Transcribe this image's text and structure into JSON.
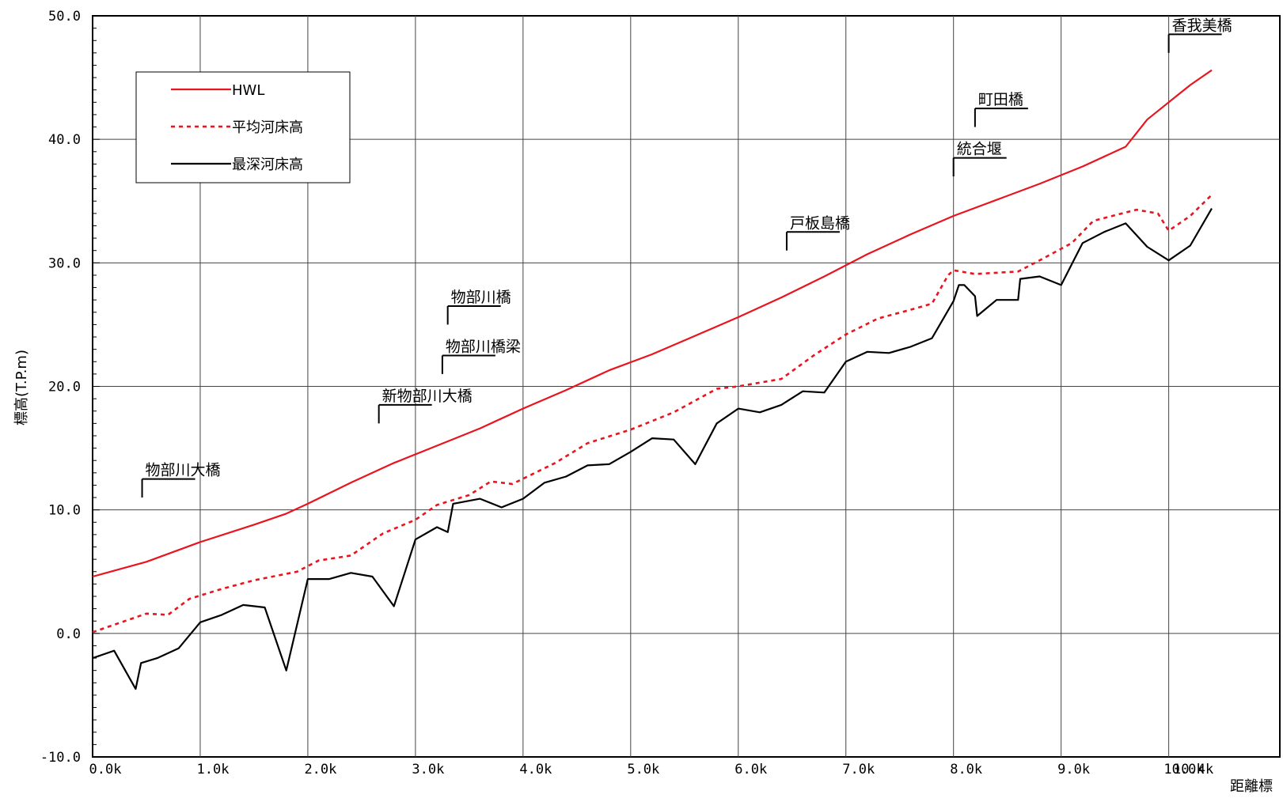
{
  "chart_data": {
    "type": "line",
    "title": "",
    "xlabel": "距離標",
    "ylabel": "標高(T.P.m)",
    "xlim": [
      0,
      10.4
    ],
    "ylim": [
      -10,
      50
    ],
    "grid": true,
    "legend_placement": "top-left",
    "y_ticks": [
      {
        "value": -10,
        "label": "-10.0"
      },
      {
        "value": 0,
        "label": "0.0"
      },
      {
        "value": 10,
        "label": "10.0"
      },
      {
        "value": 20,
        "label": "20.0"
      },
      {
        "value": 30,
        "label": "30.0"
      },
      {
        "value": 40,
        "label": "40.0"
      },
      {
        "value": 50,
        "label": "50.0"
      }
    ],
    "x_ticks": [
      {
        "value": 0,
        "label": "0.0k"
      },
      {
        "value": 1,
        "label": "1.0k"
      },
      {
        "value": 2,
        "label": "2.0k"
      },
      {
        "value": 3,
        "label": "3.0k"
      },
      {
        "value": 4,
        "label": "4.0k"
      },
      {
        "value": 5,
        "label": "5.0k"
      },
      {
        "value": 6,
        "label": "6.0k"
      },
      {
        "value": 7,
        "label": "7.0k"
      },
      {
        "value": 8,
        "label": "8.0k"
      },
      {
        "value": 9,
        "label": "9.0k"
      },
      {
        "value": 10,
        "label": "10.0k"
      },
      {
        "value": 10.4,
        "label": "10.4k"
      }
    ],
    "series": [
      {
        "name": "HWL",
        "color": "#e8141e",
        "style": "solid",
        "points": [
          [
            0,
            4.6
          ],
          [
            0.5,
            5.8
          ],
          [
            1.0,
            7.4
          ],
          [
            1.5,
            8.8
          ],
          [
            1.8,
            9.7
          ],
          [
            2.0,
            10.5
          ],
          [
            2.4,
            12.2
          ],
          [
            2.8,
            13.8
          ],
          [
            3.2,
            15.2
          ],
          [
            3.6,
            16.6
          ],
          [
            4.0,
            18.2
          ],
          [
            4.4,
            19.7
          ],
          [
            4.8,
            21.3
          ],
          [
            5.2,
            22.6
          ],
          [
            5.6,
            24.1
          ],
          [
            6.0,
            25.6
          ],
          [
            6.4,
            27.2
          ],
          [
            6.8,
            28.9
          ],
          [
            7.2,
            30.7
          ],
          [
            7.6,
            32.3
          ],
          [
            8.0,
            33.8
          ],
          [
            8.4,
            35.1
          ],
          [
            8.8,
            36.4
          ],
          [
            9.2,
            37.8
          ],
          [
            9.6,
            39.4
          ],
          [
            9.8,
            41.6
          ],
          [
            10.0,
            43.0
          ],
          [
            10.2,
            44.4
          ],
          [
            10.4,
            45.6
          ]
        ]
      },
      {
        "name": "平均河床高",
        "color": "#e8141e",
        "style": "dashed",
        "points": [
          [
            0,
            0.1
          ],
          [
            0.3,
            1.0
          ],
          [
            0.5,
            1.6
          ],
          [
            0.7,
            1.5
          ],
          [
            0.9,
            2.8
          ],
          [
            1.2,
            3.6
          ],
          [
            1.5,
            4.3
          ],
          [
            1.9,
            5.0
          ],
          [
            2.1,
            5.9
          ],
          [
            2.4,
            6.3
          ],
          [
            2.7,
            8.1
          ],
          [
            3.0,
            9.2
          ],
          [
            3.2,
            10.4
          ],
          [
            3.5,
            11.2
          ],
          [
            3.7,
            12.3
          ],
          [
            3.9,
            12.1
          ],
          [
            4.3,
            13.8
          ],
          [
            4.6,
            15.4
          ],
          [
            5.0,
            16.5
          ],
          [
            5.4,
            17.9
          ],
          [
            5.8,
            19.8
          ],
          [
            6.0,
            20.0
          ],
          [
            6.4,
            20.6
          ],
          [
            6.7,
            22.5
          ],
          [
            7.0,
            24.2
          ],
          [
            7.3,
            25.5
          ],
          [
            7.6,
            26.2
          ],
          [
            7.8,
            26.7
          ],
          [
            7.95,
            29.0
          ],
          [
            8.0,
            29.4
          ],
          [
            8.2,
            29.1
          ],
          [
            8.6,
            29.3
          ],
          [
            8.8,
            30.2
          ],
          [
            9.1,
            31.6
          ],
          [
            9.3,
            33.4
          ],
          [
            9.7,
            34.3
          ],
          [
            9.9,
            34.0
          ],
          [
            10.0,
            32.6
          ],
          [
            10.2,
            33.8
          ],
          [
            10.4,
            35.5
          ]
        ]
      },
      {
        "name": "最深河床高",
        "color": "#000000",
        "style": "solid",
        "points": [
          [
            0,
            -2.0
          ],
          [
            0.2,
            -1.4
          ],
          [
            0.4,
            -4.5
          ],
          [
            0.45,
            -2.4
          ],
          [
            0.6,
            -2.0
          ],
          [
            0.8,
            -1.2
          ],
          [
            1.0,
            0.9
          ],
          [
            1.2,
            1.5
          ],
          [
            1.4,
            2.3
          ],
          [
            1.6,
            2.1
          ],
          [
            1.8,
            -3.0
          ],
          [
            2.0,
            4.4
          ],
          [
            2.2,
            4.4
          ],
          [
            2.4,
            4.9
          ],
          [
            2.6,
            4.6
          ],
          [
            2.8,
            2.2
          ],
          [
            3.0,
            7.6
          ],
          [
            3.2,
            8.6
          ],
          [
            3.3,
            8.2
          ],
          [
            3.35,
            10.5
          ],
          [
            3.6,
            10.9
          ],
          [
            3.8,
            10.2
          ],
          [
            4.0,
            10.9
          ],
          [
            4.2,
            12.2
          ],
          [
            4.4,
            12.7
          ],
          [
            4.6,
            13.6
          ],
          [
            4.8,
            13.7
          ],
          [
            5.0,
            14.7
          ],
          [
            5.2,
            15.8
          ],
          [
            5.4,
            15.7
          ],
          [
            5.6,
            13.7
          ],
          [
            5.8,
            17.0
          ],
          [
            6.0,
            18.2
          ],
          [
            6.2,
            17.9
          ],
          [
            6.4,
            18.5
          ],
          [
            6.6,
            19.6
          ],
          [
            6.8,
            19.5
          ],
          [
            7.0,
            22.0
          ],
          [
            7.2,
            22.8
          ],
          [
            7.4,
            22.7
          ],
          [
            7.6,
            23.2
          ],
          [
            7.8,
            23.9
          ],
          [
            8.0,
            26.9
          ],
          [
            8.05,
            28.2
          ],
          [
            8.1,
            28.2
          ],
          [
            8.2,
            27.3
          ],
          [
            8.22,
            25.7
          ],
          [
            8.4,
            27.0
          ],
          [
            8.6,
            27.0
          ],
          [
            8.62,
            28.7
          ],
          [
            8.8,
            28.9
          ],
          [
            9.0,
            28.2
          ],
          [
            9.2,
            31.6
          ],
          [
            9.4,
            32.5
          ],
          [
            9.6,
            33.2
          ],
          [
            9.8,
            31.3
          ],
          [
            10.0,
            30.2
          ],
          [
            10.2,
            31.4
          ],
          [
            10.4,
            34.4
          ]
        ]
      }
    ],
    "annotations": [
      {
        "label": "物部川大橋",
        "x": 0.46,
        "y": 11.0,
        "label_y": 12.5
      },
      {
        "label": "新物部川大橋",
        "x": 2.66,
        "y": 17.0,
        "label_y": 18.5
      },
      {
        "label": "物部川橋梁",
        "x": 3.25,
        "y": 21.0,
        "label_y": 22.5
      },
      {
        "label": "物部川橋",
        "x": 3.3,
        "y": 25.0,
        "label_y": 26.5
      },
      {
        "label": "戸板島橋",
        "x": 6.45,
        "y": 31.0,
        "label_y": 32.5
      },
      {
        "label": "統合堰",
        "x": 8.0,
        "y": 37.0,
        "label_y": 38.5
      },
      {
        "label": "町田橋",
        "x": 8.2,
        "y": 41.0,
        "label_y": 42.5
      },
      {
        "label": "香我美橋",
        "x": 10.0,
        "y": 47.0,
        "label_y": 48.5
      }
    ]
  }
}
